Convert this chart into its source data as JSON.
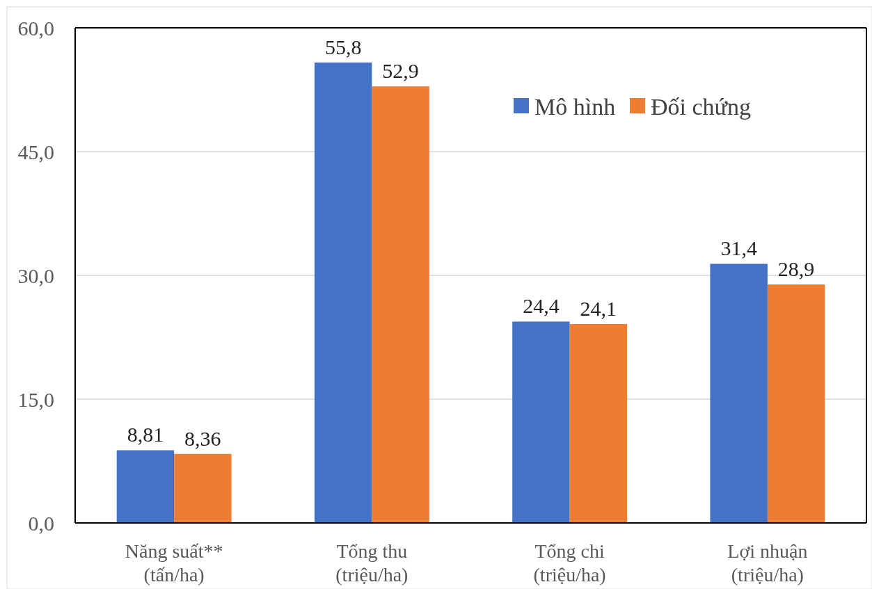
{
  "chart_data": {
    "type": "bar",
    "categories": [
      "Năng suất**\n(tấn/ha)",
      "Tổng thu\n(triệu/ha)",
      "Tổng chi\n(triệu/ha)",
      "Lợi nhuận\n(triệu/ha)"
    ],
    "series": [
      {
        "name": "Mô hình",
        "color": "#4472c4",
        "values": [
          8.81,
          55.8,
          24.4,
          31.4
        ],
        "value_labels": [
          "8,81",
          "55,8",
          "24,4",
          "31,4"
        ]
      },
      {
        "name": "Đối chứng",
        "color": "#ed7d31",
        "values": [
          8.36,
          52.9,
          24.1,
          28.9
        ],
        "value_labels": [
          "8,36",
          "52,9",
          "24,1",
          "28,9"
        ]
      }
    ],
    "ylim": [
      0,
      60
    ],
    "yticks": [
      {
        "value": 0,
        "label": "0,0"
      },
      {
        "value": 15,
        "label": "15,0"
      },
      {
        "value": 30,
        "label": "30,0"
      },
      {
        "value": 45,
        "label": "45,0"
      },
      {
        "value": 60,
        "label": "60,0"
      }
    ],
    "grid": "y",
    "legend": "top right"
  }
}
